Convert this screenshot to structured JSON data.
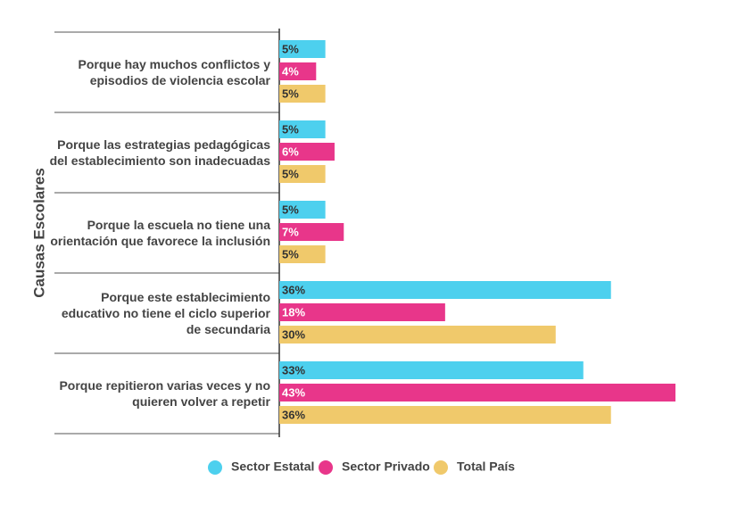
{
  "chart_data": {
    "type": "hbar",
    "y_label": "Causas Escolares",
    "categories": [
      "Porque hay muchos conflictos y episodios de violencia escolar",
      "Porque las estrategias pedagógicas del establecimiento son inadecuadas",
      "Porque la escuela no tiene una orientación que favorece la inclusión",
      "Porque este establecimiento educativo no tiene el ciclo superior de secundaria",
      "Porque repitieron varias veces y no quieren volver a repetir"
    ],
    "series": [
      {
        "name": "Sector Estatal",
        "color": "#4dd0ee",
        "label_color": "#333333",
        "values": [
          5,
          5,
          5,
          36,
          33
        ],
        "value_labels": [
          "5%",
          "5%",
          "5%",
          "36%",
          "33%"
        ]
      },
      {
        "name": "Sector Privado",
        "color": "#e8368a",
        "label_color": "#ffffff",
        "values": [
          4,
          6,
          7,
          18,
          43
        ],
        "value_labels": [
          "4%",
          "6%",
          "7%",
          "18%",
          "43%"
        ]
      },
      {
        "name": "Total País",
        "color": "#f0c96b",
        "label_color": "#333333",
        "values": [
          5,
          5,
          5,
          30,
          36
        ],
        "value_labels": [
          "5%",
          "5%",
          "5%",
          "30%",
          "36%"
        ]
      }
    ]
  }
}
